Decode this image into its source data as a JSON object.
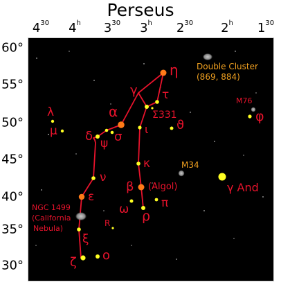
{
  "title": "Perseus",
  "ra_ticks": [
    {
      "h": "4",
      "m": "30"
    },
    {
      "h": "4",
      "m": "h"
    },
    {
      "h": "3",
      "m": "30"
    },
    {
      "h": "3",
      "m": "h"
    },
    {
      "h": "2",
      "m": "30"
    },
    {
      "h": "2",
      "m": "h"
    },
    {
      "h": "1",
      "m": "30"
    }
  ],
  "dec_ticks": [
    "60°",
    "55°",
    "50°",
    "45°",
    "40°",
    "35°",
    "30°"
  ],
  "colors": {
    "sky": "#000000",
    "frame": "#cccccc",
    "lines": "#e8132c",
    "labels": "#e8132c",
    "cluster_labels": "#f0a020",
    "star_yellow": "#ffff22",
    "star_orange": "#ff7a18",
    "deep_sky": "#888888"
  },
  "stars": [
    {
      "label": "η"
    },
    {
      "label": "γ"
    },
    {
      "label": "τ"
    },
    {
      "label": "α"
    },
    {
      "label": "Σ331"
    },
    {
      "label": "ι"
    },
    {
      "label": "ϑ"
    },
    {
      "label": "λ"
    },
    {
      "label": "μ"
    },
    {
      "label": "δ"
    },
    {
      "label": "ψ"
    },
    {
      "label": "σ"
    },
    {
      "label": "κ"
    },
    {
      "label": "ν"
    },
    {
      "label": "β"
    },
    {
      "label": "(Algol)"
    },
    {
      "label": "ε"
    },
    {
      "label": "ω"
    },
    {
      "label": "π"
    },
    {
      "label": "ρ"
    },
    {
      "label": "R"
    },
    {
      "label": "ξ"
    },
    {
      "label": "ζ"
    },
    {
      "label": "o"
    },
    {
      "label": "φ"
    },
    {
      "label": "γ And"
    }
  ],
  "deep_sky": [
    {
      "label": "Double Cluster"
    },
    {
      "label": "(869, 884)"
    },
    {
      "label": "M76"
    },
    {
      "label": "M34"
    },
    {
      "label": "NGC 1499"
    },
    {
      "label": "(California"
    },
    {
      "label": "Nebula)"
    }
  ]
}
